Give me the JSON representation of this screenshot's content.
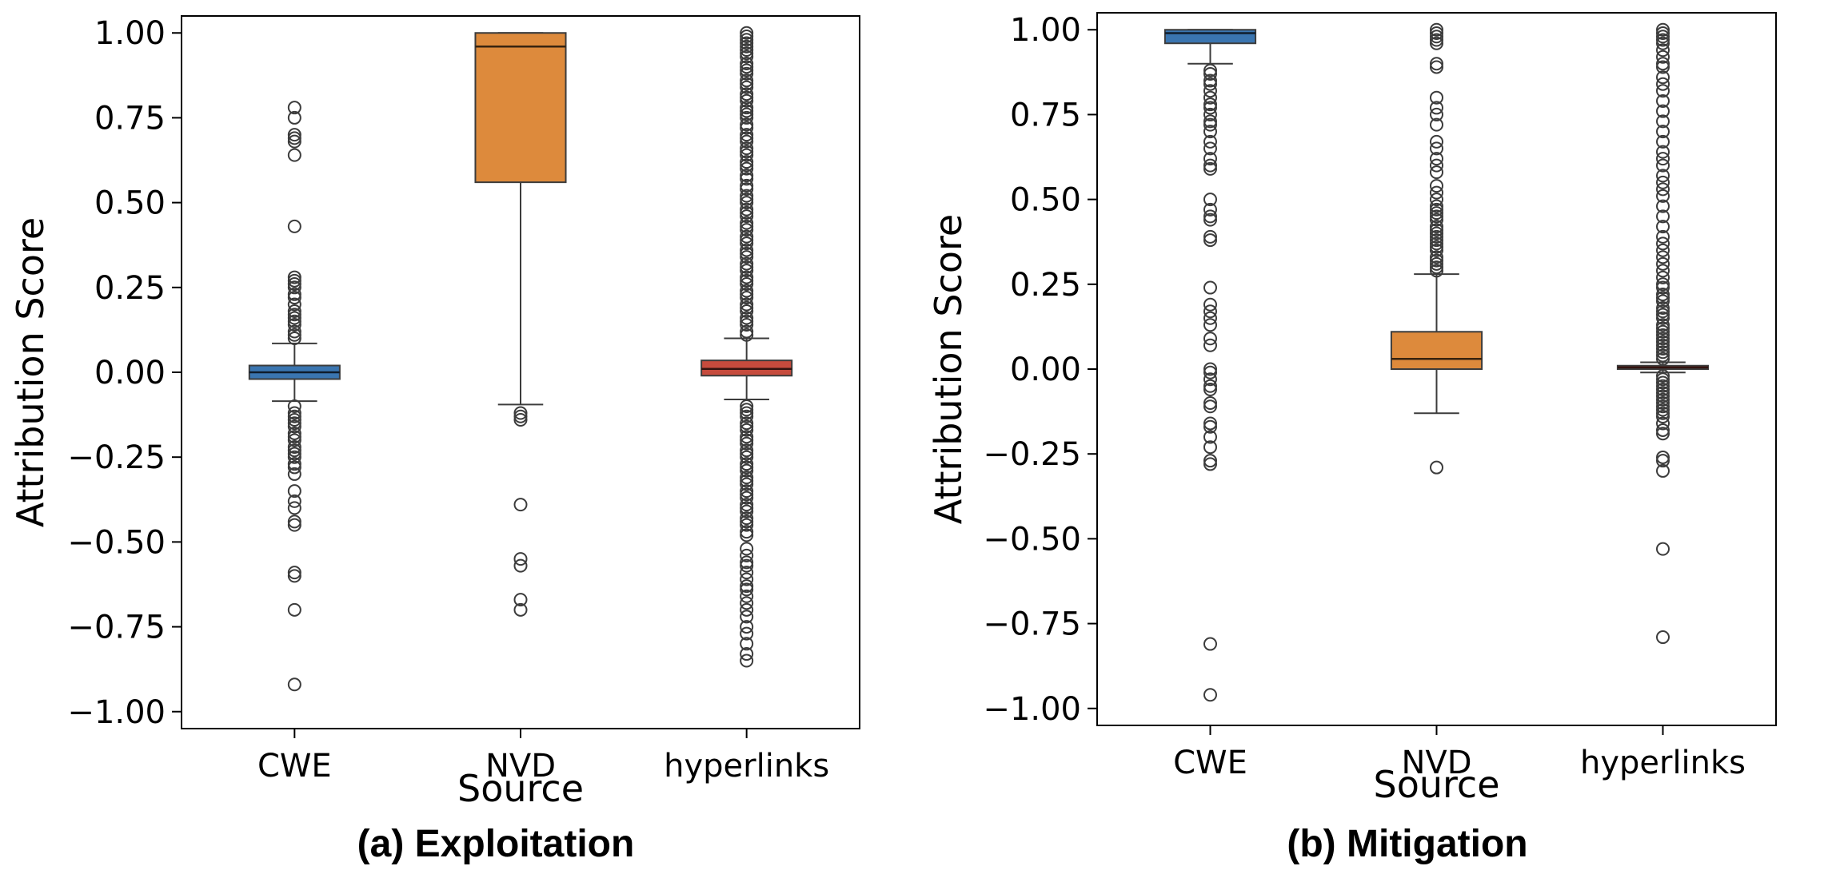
{
  "chart_data": [
    {
      "type": "boxplot",
      "caption": "(a) Exploitation",
      "xlabel": "Source",
      "ylabel": "Attribution Score",
      "ylim": [
        -1.05,
        1.05
      ],
      "yticks": [
        "1.00",
        "0.75",
        "0.50",
        "0.25",
        "0.00",
        "−0.25",
        "−0.50",
        "−0.75",
        "−1.00"
      ],
      "ytick_values": [
        1.0,
        0.75,
        0.5,
        0.25,
        0.0,
        -0.25,
        -0.5,
        -0.75,
        -1.0
      ],
      "categories": [
        "CWE",
        "NVD",
        "hyperlinks"
      ],
      "boxes": [
        {
          "category": "CWE",
          "color": "#3a75b0",
          "q1": -0.02,
          "median": 0.0,
          "q3": 0.02,
          "whisker_low": -0.085,
          "whisker_high": 0.085,
          "outliers": [
            0.78,
            0.75,
            0.7,
            0.69,
            0.68,
            0.64,
            0.43,
            0.28,
            0.27,
            0.26,
            0.25,
            0.23,
            0.22,
            0.2,
            0.18,
            0.17,
            0.16,
            0.15,
            0.14,
            0.12,
            0.11,
            0.1,
            -0.1,
            -0.12,
            -0.13,
            -0.14,
            -0.15,
            -0.16,
            -0.18,
            -0.19,
            -0.2,
            -0.22,
            -0.23,
            -0.24,
            -0.25,
            -0.27,
            -0.28,
            -0.3,
            -0.35,
            -0.38,
            -0.4,
            -0.44,
            -0.45,
            -0.59,
            -0.6,
            -0.7,
            -0.92
          ]
        },
        {
          "category": "NVD",
          "color": "#dd8a3c",
          "q1": 0.56,
          "median": 0.96,
          "q3": 1.0,
          "whisker_low": -0.095,
          "whisker_high": 1.0,
          "outliers": [
            -0.12,
            -0.13,
            -0.14,
            -0.39,
            -0.55,
            -0.57,
            -0.67,
            -0.7
          ]
        },
        {
          "category": "hyperlinks",
          "color": "#c64b3d",
          "q1": -0.01,
          "median": 0.01,
          "q3": 0.035,
          "whisker_low": -0.08,
          "whisker_high": 0.1,
          "outliers": [
            1.0,
            0.99,
            0.98,
            0.97,
            0.96,
            0.95,
            0.94,
            0.93,
            0.91,
            0.9,
            0.89,
            0.88,
            0.86,
            0.85,
            0.84,
            0.82,
            0.81,
            0.8,
            0.78,
            0.77,
            0.76,
            0.75,
            0.73,
            0.72,
            0.7,
            0.69,
            0.68,
            0.66,
            0.65,
            0.64,
            0.62,
            0.61,
            0.6,
            0.58,
            0.57,
            0.55,
            0.54,
            0.52,
            0.51,
            0.5,
            0.48,
            0.47,
            0.46,
            0.44,
            0.43,
            0.42,
            0.4,
            0.39,
            0.38,
            0.36,
            0.35,
            0.34,
            0.32,
            0.31,
            0.3,
            0.28,
            0.27,
            0.26,
            0.24,
            0.23,
            0.22,
            0.2,
            0.19,
            0.18,
            0.16,
            0.15,
            0.14,
            0.12,
            0.11,
            -0.1,
            -0.11,
            -0.12,
            -0.13,
            -0.15,
            -0.16,
            -0.17,
            -0.19,
            -0.2,
            -0.21,
            -0.23,
            -0.24,
            -0.25,
            -0.27,
            -0.28,
            -0.29,
            -0.31,
            -0.32,
            -0.33,
            -0.35,
            -0.36,
            -0.37,
            -0.39,
            -0.4,
            -0.41,
            -0.43,
            -0.44,
            -0.45,
            -0.47,
            -0.48,
            -0.52,
            -0.54,
            -0.56,
            -0.57,
            -0.59,
            -0.61,
            -0.63,
            -0.64,
            -0.66,
            -0.68,
            -0.7,
            -0.72,
            -0.75,
            -0.77,
            -0.8,
            -0.83,
            -0.85
          ]
        }
      ]
    },
    {
      "type": "boxplot",
      "caption": "(b) Mitigation",
      "xlabel": "Source",
      "ylabel": "Attribution Score",
      "ylim": [
        -1.05,
        1.05
      ],
      "yticks": [
        "1.00",
        "0.75",
        "0.50",
        "0.25",
        "0.00",
        "−0.25",
        "−0.50",
        "−0.75",
        "−1.00"
      ],
      "ytick_values": [
        1.0,
        0.75,
        0.5,
        0.25,
        0.0,
        -0.25,
        -0.5,
        -0.75,
        -1.0
      ],
      "categories": [
        "CWE",
        "NVD",
        "hyperlinks"
      ],
      "boxes": [
        {
          "category": "CWE",
          "color": "#3a75b0",
          "q1": 0.96,
          "median": 0.99,
          "q3": 1.0,
          "whisker_low": 0.9,
          "whisker_high": 1.0,
          "outliers": [
            0.88,
            0.87,
            0.85,
            0.84,
            0.82,
            0.8,
            0.78,
            0.77,
            0.75,
            0.73,
            0.72,
            0.7,
            0.67,
            0.65,
            0.62,
            0.6,
            0.59,
            0.5,
            0.47,
            0.45,
            0.44,
            0.39,
            0.38,
            0.24,
            0.19,
            0.17,
            0.15,
            0.13,
            0.09,
            0.07,
            0.0,
            -0.01,
            -0.03,
            -0.05,
            -0.06,
            -0.1,
            -0.11,
            -0.16,
            -0.17,
            -0.2,
            -0.23,
            -0.27,
            -0.28,
            -0.81,
            -0.96
          ]
        },
        {
          "category": "NVD",
          "color": "#dd8a3c",
          "q1": 0.0,
          "median": 0.03,
          "q3": 0.11,
          "whisker_low": -0.13,
          "whisker_high": 0.28,
          "outliers": [
            1.0,
            0.99,
            0.98,
            0.97,
            0.96,
            0.9,
            0.89,
            0.8,
            0.77,
            0.75,
            0.72,
            0.67,
            0.65,
            0.62,
            0.6,
            0.58,
            0.54,
            0.52,
            0.5,
            0.48,
            0.47,
            0.46,
            0.45,
            0.44,
            0.42,
            0.41,
            0.4,
            0.39,
            0.38,
            0.37,
            0.36,
            0.35,
            0.33,
            0.32,
            0.31,
            0.3,
            0.29,
            -0.29
          ]
        },
        {
          "category": "hyperlinks",
          "color": "#c64b3d",
          "q1": 0.0,
          "median": 0.005,
          "q3": 0.01,
          "whisker_low": -0.01,
          "whisker_high": 0.02,
          "outliers": [
            1.0,
            0.99,
            0.98,
            0.97,
            0.96,
            0.94,
            0.92,
            0.9,
            0.89,
            0.86,
            0.84,
            0.82,
            0.79,
            0.76,
            0.73,
            0.7,
            0.67,
            0.64,
            0.62,
            0.6,
            0.57,
            0.55,
            0.53,
            0.51,
            0.48,
            0.45,
            0.42,
            0.39,
            0.37,
            0.35,
            0.33,
            0.31,
            0.29,
            0.27,
            0.25,
            0.24,
            0.22,
            0.21,
            0.2,
            0.18,
            0.17,
            0.16,
            0.15,
            0.13,
            0.12,
            0.11,
            0.1,
            0.09,
            0.08,
            0.07,
            0.06,
            0.05,
            0.04,
            0.03,
            -0.02,
            -0.03,
            -0.04,
            -0.05,
            -0.06,
            -0.07,
            -0.08,
            -0.09,
            -0.1,
            -0.11,
            -0.12,
            -0.13,
            -0.14,
            -0.16,
            -0.18,
            -0.19,
            -0.26,
            -0.27,
            -0.3,
            -0.53,
            -0.79
          ]
        }
      ]
    }
  ]
}
